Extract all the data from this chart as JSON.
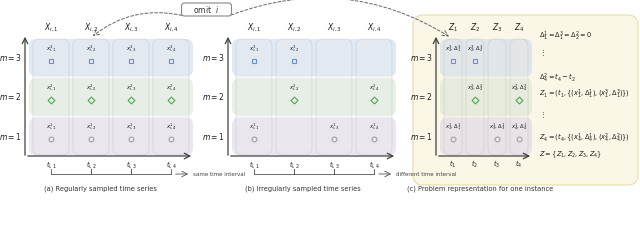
{
  "panel_a": {
    "title": "(a) Regularly sampled time series",
    "col_labels": [
      "$X_{i,1}$",
      "$X_{i,2}$",
      "$X_{i,3}$",
      "$X_{i,4}$"
    ],
    "row_labels_top_to_bottom": [
      "$m=3$",
      "$m=2$",
      "$m=1$"
    ],
    "time_labels": [
      "$t_{i,1}$",
      "$t_{i,2}$",
      "$t_{i,3}$",
      "$t_{i,4}$"
    ],
    "cell_labels_row0": [
      "$x_{i,1}^3$",
      "$x_{i,2}^3$",
      "$x_{i,3}^3$",
      "$x_{i,4}^3$"
    ],
    "cell_labels_row1": [
      "$x_{i,1}^2$",
      "$x_{i,2}^2$",
      "$x_{i,3}^2$",
      "$x_{i,4}^2$"
    ],
    "cell_labels_row2": [
      "$x_{i,1}^1$",
      "$x_{i,2}^1$",
      "$x_{i,3}^1$",
      "$x_{i,4}^1$"
    ],
    "present_row0": [
      true,
      true,
      true,
      true
    ],
    "present_row1": [
      true,
      true,
      true,
      true
    ],
    "present_row2": [
      true,
      true,
      true,
      true
    ]
  },
  "panel_b": {
    "title": "(b) Irregularly sampled time series",
    "col_labels": [
      "$X_{i,1}$",
      "$X_{i,2}$",
      "$X_{i,3}$",
      "$X_{i,4}$"
    ],
    "row_labels_top_to_bottom": [
      "$m=3$",
      "$m=2$",
      "$m=1$"
    ],
    "time_labels": [
      "$t_{i,1}$",
      "$t_{i,2}$",
      "$t_{i,3}$",
      "$t_{i,4}$"
    ],
    "cell_labels_row0": [
      "$x_{i,1}^3$",
      "$x_{i,2}^3$",
      "",
      ""
    ],
    "cell_labels_row1": [
      "",
      "$x_{i,2}^2$",
      "",
      "$x_{i,4}^2$"
    ],
    "cell_labels_row2": [
      "$x_{i,1}^1$",
      "",
      "$x_{i,3}^1$",
      "$x_{i,4}^1$"
    ],
    "present_row0": [
      true,
      true,
      false,
      false
    ],
    "present_row1": [
      false,
      true,
      false,
      true
    ],
    "present_row2": [
      true,
      false,
      true,
      true
    ]
  },
  "panel_c": {
    "title": "(c) Problem representation for one instance",
    "col_labels": [
      "$Z_1$",
      "$Z_2$",
      "$Z_3$",
      "$Z_4$"
    ],
    "row_labels_top_to_bottom": [
      "$m=3$",
      "$m=2$",
      "$m=1$"
    ],
    "time_labels": [
      "$t_1$",
      "$t_2$",
      "$t_3$",
      "$t_4$"
    ],
    "cell_labels_row0": [
      "$x_1^3,\\Delta_1^3$",
      "$x_2^3,\\Delta_2^3$",
      "",
      ""
    ],
    "cell_labels_row1": [
      "",
      "$x_2^2,\\Delta_2^2$",
      "",
      "$x_4^2,\\Delta_4^2$"
    ],
    "cell_labels_row2": [
      "$x_1^1,\\Delta_1^1$",
      "",
      "$x_3^1,\\Delta_3^1$",
      "$x_4^1,\\Delta_4^1$"
    ],
    "present_row0": [
      true,
      true,
      false,
      false
    ],
    "present_row1": [
      false,
      true,
      false,
      true
    ],
    "present_row2": [
      true,
      false,
      true,
      true
    ]
  },
  "colors": {
    "row0_bg": "#c8d9f0",
    "row1_bg": "#d4e8d0",
    "row2_bg": "#ddd0e8",
    "col_bg": "#e8e8e8",
    "panel_c_bg": "#faf5dc",
    "panel_c_border": "#e0d090",
    "marker_row0": "#7090c8",
    "marker_row1": "#50a850",
    "marker_row2": "#a0a0a8",
    "axis_color": "#404040",
    "text_color": "#202020"
  },
  "omit_box_text": "omit  $i$",
  "same_interval_text": "same time interval",
  "diff_interval_text": "different time interval",
  "eq_texts": [
    "$\\Delta_1^1 = \\Delta_1^3 = \\Delta_2^2 = 0$",
    "$\\vdots$",
    "$\\Delta_4^2 = t_4 - t_2$",
    "$Z_1 = (t_1, \\{(x_1^1, \\Delta_1^1), (x_1^3, \\Delta_1^3)\\})$",
    "$\\vdots$",
    "$Z_4 = (t_4, \\{(x_4^1, \\Delta_4^1), (x_4^2, \\Delta_4^2)\\})$",
    "$Z = \\{Z_1, Z_2, Z_3, Z_4\\}$"
  ]
}
